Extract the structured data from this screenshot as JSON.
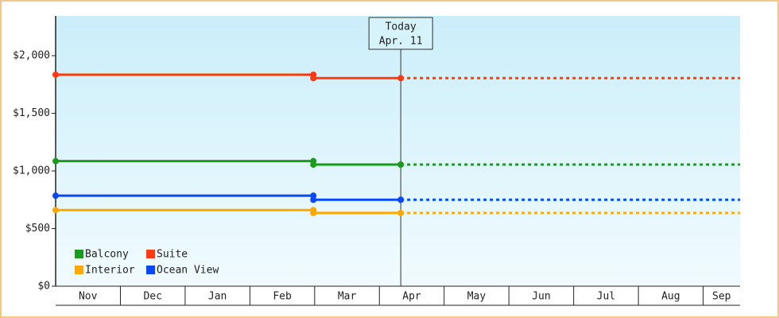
{
  "chart_data": {
    "type": "line",
    "categories": [
      "Nov",
      "Dec",
      "Jan",
      "Feb",
      "Mar",
      "Apr",
      "May",
      "Jun",
      "Jul",
      "Aug",
      "Sep"
    ],
    "xlim": [
      0,
      10.57
    ],
    "ylim": [
      0,
      2345
    ],
    "yticks": [
      {
        "value": 0,
        "label": "$0"
      },
      {
        "value": 500,
        "label": "$500"
      },
      {
        "value": 1000,
        "label": "$1,000"
      },
      {
        "value": 1500,
        "label": "$1,500"
      },
      {
        "value": 2000,
        "label": "$2,000"
      }
    ],
    "today": {
      "x": 5.33,
      "label": "Today",
      "date": "Apr. 11"
    },
    "legend": "bottom-left",
    "series": [
      {
        "name": "Balcony",
        "color": "#1c9a1c",
        "x": [
          0,
          3.98,
          3.98,
          5.33,
          10.57
        ],
        "values": [
          1085,
          1085,
          1055,
          1055,
          1055
        ]
      },
      {
        "name": "Suite",
        "color": "#ff3b0f",
        "x": [
          0,
          3.98,
          3.98,
          5.33,
          10.57
        ],
        "values": [
          1835,
          1835,
          1805,
          1805,
          1805
        ]
      },
      {
        "name": "Interior",
        "color": "#ffa800",
        "x": [
          0,
          3.98,
          3.98,
          5.33,
          10.57
        ],
        "values": [
          660,
          660,
          635,
          635,
          635
        ]
      },
      {
        "name": "Ocean View",
        "color": "#0a48f5",
        "x": [
          0,
          3.98,
          3.98,
          5.33,
          10.57
        ],
        "values": [
          785,
          785,
          750,
          750,
          750
        ]
      }
    ]
  }
}
